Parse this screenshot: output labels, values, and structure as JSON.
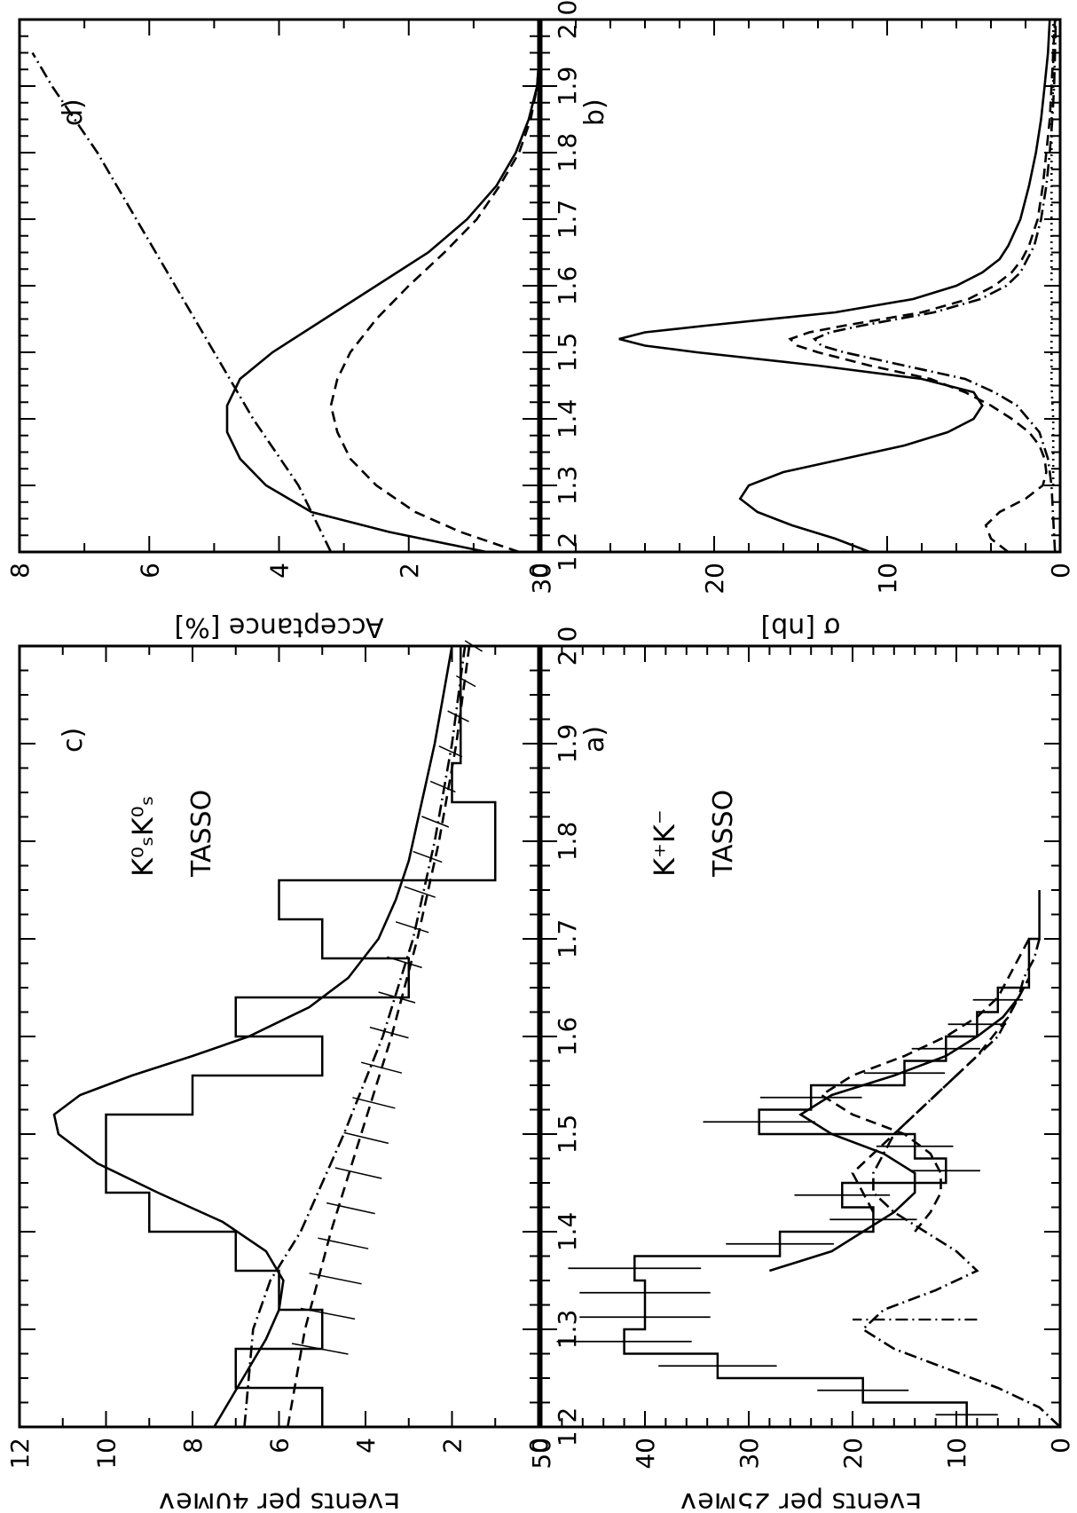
{
  "figure": {
    "rotation": "90deg counter-clockwise (page printed sideways)"
  },
  "chart_data": [
    {
      "panel": "a",
      "panel_label": "a)",
      "type": "line",
      "title": "",
      "annotation": "K⁺K⁻",
      "experiment": "TASSO",
      "xlabel": "",
      "ylabel": "Events per 25MeV",
      "xlim": [
        1.2,
        2.0
      ],
      "ylim": [
        0,
        50
      ],
      "xticks": [
        "1.2",
        "1.3",
        "1.4",
        "1.5",
        "1.6",
        "1.7",
        "1.8",
        "1.9",
        "2.0"
      ],
      "yticks": [
        "0",
        "10",
        "20",
        "30",
        "40",
        "50"
      ],
      "histogram": {
        "bin_width": 0.025,
        "x_start": 1.2,
        "values": [
          9,
          19,
          33,
          42,
          40,
          40,
          41,
          27,
          18,
          21,
          11,
          14,
          29,
          24,
          15,
          11,
          8,
          6,
          3,
          3,
          2,
          2
        ]
      },
      "error_bars": [
        {
          "x": 1.2125,
          "y": 9,
          "err": 3
        },
        {
          "x": 1.2375,
          "y": 19,
          "err": 4.4
        },
        {
          "x": 1.2625,
          "y": 33,
          "err": 5.7
        },
        {
          "x": 1.2875,
          "y": 42,
          "err": 6.5
        },
        {
          "x": 1.3125,
          "y": 40,
          "err": 6.3
        },
        {
          "x": 1.3375,
          "y": 40,
          "err": 6.3
        },
        {
          "x": 1.3625,
          "y": 41,
          "err": 6.4
        },
        {
          "x": 1.3875,
          "y": 27,
          "err": 5.2
        },
        {
          "x": 1.4125,
          "y": 18,
          "err": 4.2
        },
        {
          "x": 1.4375,
          "y": 21,
          "err": 4.6
        },
        {
          "x": 1.4625,
          "y": 11,
          "err": 3.3
        },
        {
          "x": 1.4875,
          "y": 14,
          "err": 3.7
        },
        {
          "x": 1.5125,
          "y": 29,
          "err": 5.4
        },
        {
          "x": 1.5375,
          "y": 24,
          "err": 4.9
        },
        {
          "x": 1.5625,
          "y": 15,
          "err": 3.9
        },
        {
          "x": 1.5875,
          "y": 11,
          "err": 3.3
        },
        {
          "x": 1.6125,
          "y": 8,
          "err": 2.8
        },
        {
          "x": 1.6375,
          "y": 6,
          "err": 2.4
        }
      ],
      "series": [
        {
          "name": "",
          "style": "solid",
          "x": [
            1.36,
            1.38,
            1.4,
            1.42,
            1.44,
            1.46,
            1.48,
            1.5,
            1.52,
            1.54,
            1.56,
            1.58,
            1.6,
            1.62,
            1.64,
            1.65
          ],
          "y": [
            28,
            22,
            19,
            16,
            14,
            14,
            17,
            22,
            25,
            22,
            16,
            11,
            8,
            5.5,
            4,
            3.5
          ]
        },
        {
          "name": "",
          "style": "dashed",
          "x": [
            1.42,
            1.44,
            1.46,
            1.48,
            1.5,
            1.52,
            1.54,
            1.56,
            1.58,
            1.6,
            1.62,
            1.64,
            1.66
          ],
          "y": [
            18,
            19,
            20,
            18,
            16,
            14,
            12,
            10,
            8,
            6.5,
            5,
            4,
            3
          ]
        },
        {
          "name": "",
          "style": "dashdot",
          "x": [
            1.2,
            1.22,
            1.24,
            1.26,
            1.28,
            1.3,
            1.32,
            1.34,
            1.36,
            1.38,
            1.4,
            1.42,
            1.44,
            1.46,
            1.48,
            1.5,
            1.52,
            1.54,
            1.56,
            1.58,
            1.6,
            1.62,
            1.64,
            1.66,
            1.68,
            1.7
          ],
          "y": [
            0,
            2,
            6,
            11,
            16,
            19,
            17,
            12,
            8,
            10,
            13,
            16,
            18,
            18,
            17,
            16,
            14,
            12,
            10,
            8,
            6,
            5,
            4,
            3.5,
            2.5,
            2
          ]
        },
        {
          "name": "",
          "style": "dashed",
          "x": [
            1.4,
            1.42,
            1.44,
            1.46,
            1.48,
            1.5,
            1.52,
            1.54,
            1.56,
            1.58,
            1.6,
            1.62,
            1.64,
            1.66,
            1.68,
            1.7
          ],
          "y": [
            14,
            12.5,
            11.5,
            11.5,
            12.5,
            15,
            20,
            23,
            20,
            15,
            11,
            8,
            6,
            5,
            4,
            3
          ]
        }
      ],
      "vertical_marker": {
        "x": 1.31,
        "y1": 8,
        "y2": 20,
        "style": "dashdot"
      }
    },
    {
      "panel": "b",
      "panel_label": "b)",
      "type": "line",
      "title": "",
      "xlabel": "",
      "ylabel": "σ [nb]",
      "xlim": [
        1.2,
        2.0
      ],
      "ylim": [
        0,
        30
      ],
      "xticks": [
        "1.2",
        "1.3",
        "1.4",
        "1.5",
        "1.6",
        "1.7",
        "1.8",
        "1.9",
        "2.0"
      ],
      "yticks": [
        "0",
        "10",
        "20",
        "30"
      ],
      "series": [
        {
          "name": "",
          "style": "solid",
          "x": [
            1.2,
            1.22,
            1.24,
            1.26,
            1.28,
            1.3,
            1.32,
            1.34,
            1.36,
            1.38,
            1.4,
            1.42,
            1.44,
            1.46,
            1.48,
            1.5,
            1.51,
            1.52,
            1.53,
            1.54,
            1.56,
            1.58,
            1.6,
            1.62,
            1.64,
            1.66,
            1.7,
            1.75,
            1.8,
            1.85,
            1.9,
            1.95,
            2.0
          ],
          "y": [
            11,
            13,
            15.5,
            17.5,
            18.5,
            18,
            16,
            12.5,
            9,
            6.5,
            5,
            4.5,
            5,
            8,
            14,
            21,
            24,
            25.5,
            24,
            20.5,
            13,
            8.5,
            6,
            4.5,
            3.5,
            3,
            2.3,
            1.8,
            1.4,
            1.1,
            0.9,
            0.7,
            0.6
          ]
        },
        {
          "name": "",
          "style": "dashed",
          "x": [
            1.2,
            1.22,
            1.24,
            1.26,
            1.28,
            1.3,
            1.32,
            1.34,
            1.36,
            1.38,
            1.4,
            1.42,
            1.44,
            1.46,
            1.48,
            1.5,
            1.51,
            1.52,
            1.53,
            1.54,
            1.56,
            1.58,
            1.6,
            1.62,
            1.64,
            1.66,
            1.7,
            1.75,
            1.8,
            1.85,
            1.9,
            1.95,
            2.0
          ],
          "y": [
            3,
            4,
            4.3,
            3.5,
            2,
            1,
            0.8,
            0.9,
            1.2,
            1.8,
            2.8,
            4,
            5.5,
            7.5,
            11,
            14,
            15.2,
            15.6,
            14.5,
            12.5,
            8,
            5.3,
            3.8,
            2.8,
            2.2,
            1.8,
            1.3,
            1,
            0.8,
            0.6,
            0.5,
            0.4,
            0.3
          ]
        },
        {
          "name": "",
          "style": "dashdot",
          "x": [
            1.2,
            1.25,
            1.3,
            1.34,
            1.38,
            1.42,
            1.44,
            1.46,
            1.48,
            1.5,
            1.51,
            1.52,
            1.53,
            1.54,
            1.56,
            1.58,
            1.6,
            1.62,
            1.66,
            1.7,
            1.75,
            1.8,
            1.85,
            1.9,
            1.95,
            2.0
          ],
          "y": [
            0.3,
            0.4,
            0.5,
            0.7,
            1.2,
            2.5,
            3.8,
            5.5,
            9,
            12.5,
            13.8,
            14.2,
            13.3,
            11.5,
            7.3,
            4.6,
            3.1,
            2.3,
            1.5,
            1.1,
            0.8,
            0.6,
            0.45,
            0.35,
            0.3,
            0.25
          ]
        },
        {
          "name": "",
          "style": "dotted",
          "x": [
            1.3,
            1.35,
            1.4,
            1.45,
            1.5,
            1.55,
            1.6,
            1.65,
            1.7,
            1.75,
            1.8,
            1.85,
            1.9,
            1.95,
            2.0
          ],
          "y": [
            0.4,
            0.4,
            0.4,
            0.5,
            0.5,
            0.5,
            0.5,
            0.5,
            0.5,
            0.5,
            0.5,
            0.5,
            0.4,
            0.4,
            0.4
          ]
        }
      ]
    },
    {
      "panel": "c",
      "panel_label": "c)",
      "type": "line",
      "title": "",
      "annotation": "K⁰ₛK⁰ₛ",
      "experiment": "TASSO",
      "xlabel": "",
      "ylabel": "Events per 40MeV",
      "xlim": [
        1.2,
        2.0
      ],
      "ylim": [
        0,
        12
      ],
      "xticks": [
        "1.2",
        "1.3",
        "1.4",
        "1.5",
        "1.6",
        "1.7",
        "1.8",
        "1.9",
        "2.0"
      ],
      "yticks": [
        "0",
        "2",
        "4",
        "6",
        "8",
        "10",
        "12"
      ],
      "histogram": {
        "bin_width": 0.04,
        "x_start": 1.2,
        "values": [
          5,
          7,
          5,
          6,
          7,
          9,
          10,
          10,
          8,
          5,
          7,
          3,
          5,
          6,
          1,
          1,
          2,
          1.8,
          1.8,
          1.8
        ]
      },
      "series": [
        {
          "name": "",
          "style": "solid",
          "x": [
            1.2,
            1.23,
            1.26,
            1.29,
            1.32,
            1.35,
            1.38,
            1.41,
            1.44,
            1.47,
            1.5,
            1.52,
            1.54,
            1.56,
            1.58,
            1.6,
            1.63,
            1.66,
            1.7,
            1.74,
            1.78,
            1.82,
            1.86,
            1.9,
            1.95,
            2.0
          ],
          "y": [
            7.5,
            7.1,
            6.7,
            6.3,
            6.0,
            5.9,
            6.3,
            7.3,
            8.8,
            10.2,
            11.1,
            11.2,
            10.6,
            9.4,
            8.0,
            6.7,
            5.3,
            4.4,
            3.7,
            3.3,
            3.0,
            2.8,
            2.6,
            2.4,
            2.2,
            2.0
          ]
        },
        {
          "name": "",
          "style": "dashed",
          "x": [
            1.2,
            1.3,
            1.4,
            1.5,
            1.6,
            1.7,
            1.8,
            1.9,
            2.0
          ],
          "y": [
            5.8,
            5.4,
            4.8,
            4.1,
            3.4,
            2.8,
            2.3,
            1.9,
            1.6
          ]
        },
        {
          "name": "",
          "style": "dashdot",
          "x": [
            1.2,
            1.3,
            1.35,
            1.4,
            1.5,
            1.6,
            1.7,
            1.8,
            1.9,
            2.0
          ],
          "y": [
            6.8,
            6.6,
            6.2,
            5.5,
            4.5,
            3.6,
            2.9,
            2.4,
            2.0,
            1.7
          ]
        }
      ],
      "band": {
        "x": [
          1.28,
          2.0
        ],
        "upper": [
          5.7,
          1.7
        ],
        "lower": [
          4.4,
          1.3
        ],
        "style": "hatched"
      }
    },
    {
      "panel": "d",
      "panel_label": "d)",
      "type": "line",
      "title": "",
      "xlabel": "",
      "ylabel": "Acceptance [%]",
      "xlim": [
        1.2,
        2.0
      ],
      "ylim": [
        0,
        8
      ],
      "xticks": [
        "1.2",
        "1.3",
        "1.4",
        "1.5",
        "1.6",
        "1.7",
        "1.8",
        "1.9",
        "2.0"
      ],
      "yticks": [
        "0",
        "2",
        "4",
        "6",
        "8"
      ],
      "series": [
        {
          "name": "",
          "style": "solid",
          "x": [
            1.2,
            1.23,
            1.26,
            1.3,
            1.34,
            1.38,
            1.42,
            1.46,
            1.5,
            1.55,
            1.6,
            1.65,
            1.7,
            1.75,
            1.8,
            1.85,
            1.9,
            1.93
          ],
          "y": [
            0.8,
            2.3,
            3.5,
            4.2,
            4.6,
            4.8,
            4.8,
            4.6,
            4.1,
            3.3,
            2.5,
            1.7,
            1.1,
            0.65,
            0.35,
            0.15,
            0.02,
            0
          ]
        },
        {
          "name": "",
          "style": "dashed",
          "x": [
            1.2,
            1.23,
            1.26,
            1.3,
            1.34,
            1.38,
            1.42,
            1.46,
            1.5,
            1.55,
            1.6,
            1.65,
            1.7,
            1.75,
            1.8,
            1.85,
            1.9,
            1.93
          ],
          "y": [
            0.3,
            1.2,
            1.9,
            2.5,
            2.9,
            3.1,
            3.2,
            3.1,
            2.9,
            2.5,
            2.0,
            1.45,
            0.95,
            0.6,
            0.3,
            0.12,
            0.02,
            0
          ]
        },
        {
          "name": "",
          "style": "dashdot",
          "x": [
            1.2,
            1.3,
            1.4,
            1.5,
            1.6,
            1.7,
            1.8,
            1.9,
            1.95
          ],
          "y": [
            3.2,
            3.7,
            4.4,
            5.0,
            5.6,
            6.2,
            6.8,
            7.5,
            7.8
          ]
        }
      ]
    }
  ]
}
